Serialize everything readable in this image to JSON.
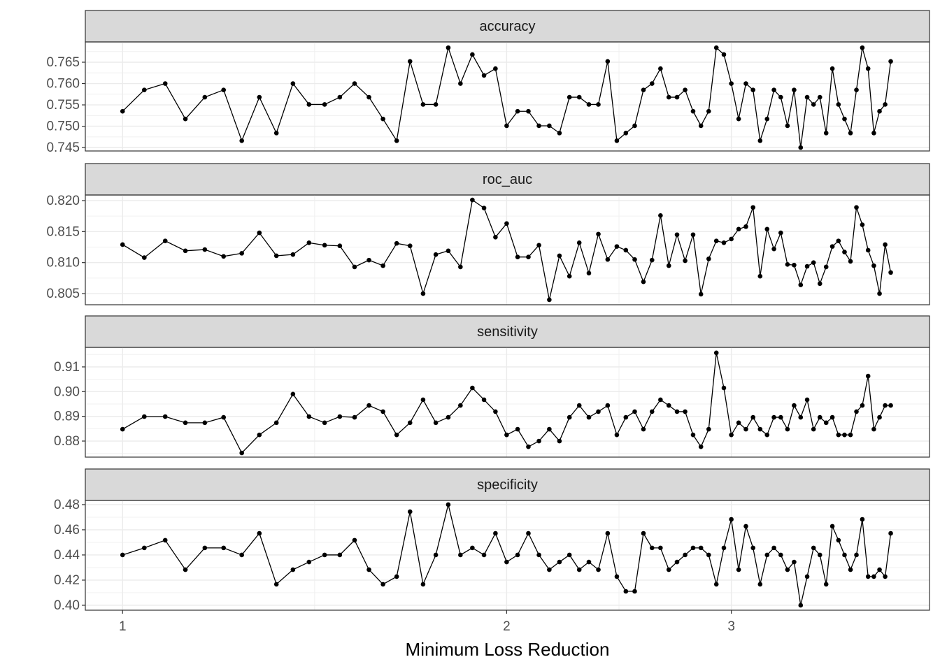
{
  "chart_data": [
    {
      "type": "line",
      "title": "accuracy",
      "log_x": true,
      "grid": true,
      "color": "#000000",
      "xlim": [
        0.935,
        4.29
      ],
      "xticks": [
        1,
        2,
        3
      ],
      "ylim": [
        0.7442,
        0.76975
      ],
      "yticks": [
        0.745,
        {
          "value": 0.75,
          "label": "0.750"
        },
        0.755,
        {
          "value": 0.76,
          "label": "0.760"
        },
        0.765
      ],
      "x": [
        1,
        1.04,
        1.08,
        1.12,
        1.16,
        1.2,
        1.24,
        1.28,
        1.32,
        1.36,
        1.4,
        1.44,
        1.48,
        1.52,
        1.56,
        1.6,
        1.64,
        1.68,
        1.72,
        1.76,
        1.8,
        1.84,
        1.88,
        1.92,
        1.96,
        2,
        2.04,
        2.08,
        2.12,
        2.16,
        2.2,
        2.24,
        2.28,
        2.32,
        2.36,
        2.4,
        2.44,
        2.48,
        2.52,
        2.56,
        2.6,
        2.64,
        2.68,
        2.72,
        2.76,
        2.8,
        2.84,
        2.88,
        2.92,
        2.96,
        3,
        3.04,
        3.08,
        3.12,
        3.16,
        3.2,
        3.24,
        3.28,
        3.32,
        3.36,
        3.4,
        3.44,
        3.48,
        3.52,
        3.56,
        3.6,
        3.64,
        3.68,
        3.72,
        3.76,
        3.8,
        3.84,
        3.88,
        3.92,
        3.96,
        4
      ],
      "values": [
        0.7535,
        0.7585,
        0.76,
        0.7517,
        0.7568,
        0.7585,
        0.7466,
        0.7568,
        0.7484,
        0.76,
        0.7551,
        0.7551,
        0.7568,
        0.76,
        0.7568,
        0.7517,
        0.7466,
        0.7652,
        0.7551,
        0.7551,
        0.7684,
        0.76,
        0.7668,
        0.7619,
        0.7635,
        0.7501,
        0.7535,
        0.7535,
        0.7501,
        0.7501,
        0.7484,
        0.7568,
        0.7568,
        0.7551,
        0.7551,
        0.7652,
        0.7466,
        0.7484,
        0.7501,
        0.7585,
        0.76,
        0.7635,
        0.7568,
        0.7568,
        0.7585,
        0.7535,
        0.7501,
        0.7535,
        0.7684,
        0.7668,
        0.76,
        0.7517,
        0.76,
        0.7585,
        0.7466,
        0.7517,
        0.7585,
        0.7568,
        0.7501,
        0.7585,
        0.745,
        0.7568,
        0.7551,
        0.7568,
        0.7484,
        0.7635,
        0.7551,
        0.7517,
        0.7484,
        0.7585,
        0.7684,
        0.7635,
        0.7484,
        0.7535,
        0.7551,
        0.7652
      ]
    },
    {
      "type": "line",
      "title": "roc_auc",
      "log_x": true,
      "grid": true,
      "color": "#000000",
      "xlim": [
        0.935,
        4.29
      ],
      "xticks": [
        1,
        2,
        3
      ],
      "ylim": [
        0.8032,
        0.8209
      ],
      "yticks": [
        0.805,
        {
          "value": 0.81,
          "label": "0.810"
        },
        0.815,
        {
          "value": 0.82,
          "label": "0.820"
        }
      ],
      "x": [
        1,
        1.04,
        1.08,
        1.12,
        1.16,
        1.2,
        1.24,
        1.28,
        1.32,
        1.36,
        1.4,
        1.44,
        1.48,
        1.52,
        1.56,
        1.6,
        1.64,
        1.68,
        1.72,
        1.76,
        1.8,
        1.84,
        1.88,
        1.92,
        1.96,
        2,
        2.04,
        2.08,
        2.12,
        2.16,
        2.2,
        2.24,
        2.28,
        2.32,
        2.36,
        2.4,
        2.44,
        2.48,
        2.52,
        2.56,
        2.6,
        2.64,
        2.68,
        2.72,
        2.76,
        2.8,
        2.84,
        2.88,
        2.92,
        2.96,
        3,
        3.04,
        3.08,
        3.12,
        3.16,
        3.2,
        3.24,
        3.28,
        3.32,
        3.36,
        3.4,
        3.44,
        3.48,
        3.52,
        3.56,
        3.6,
        3.64,
        3.68,
        3.72,
        3.76,
        3.8,
        3.84,
        3.88,
        3.92,
        3.96,
        4
      ],
      "values": [
        0.8129,
        0.8108,
        0.8135,
        0.8119,
        0.8121,
        0.811,
        0.8115,
        0.8148,
        0.8111,
        0.8113,
        0.8132,
        0.8128,
        0.8127,
        0.8093,
        0.8104,
        0.8095,
        0.8131,
        0.8127,
        0.805,
        0.8113,
        0.8119,
        0.8093,
        0.8201,
        0.8188,
        0.8141,
        0.8163,
        0.8109,
        0.8109,
        0.8128,
        0.804,
        0.8111,
        0.8078,
        0.8132,
        0.8083,
        0.8146,
        0.8105,
        0.8126,
        0.812,
        0.8105,
        0.8069,
        0.8104,
        0.8176,
        0.8095,
        0.8145,
        0.8103,
        0.8145,
        0.8049,
        0.8106,
        0.8135,
        0.8132,
        0.8138,
        0.8154,
        0.8158,
        0.8189,
        0.8078,
        0.8154,
        0.8122,
        0.8148,
        0.8097,
        0.8096,
        0.8064,
        0.8094,
        0.81,
        0.8066,
        0.8093,
        0.8126,
        0.8135,
        0.8117,
        0.8102,
        0.8189,
        0.8161,
        0.812,
        0.8095,
        0.805,
        0.8129,
        0.8084
      ]
    },
    {
      "type": "line",
      "title": "sensitivity",
      "log_x": true,
      "grid": true,
      "color": "#000000",
      "xlim": [
        0.935,
        4.29
      ],
      "xticks": [
        1,
        2,
        3
      ],
      "ylim": [
        0.8735,
        0.9179
      ],
      "yticks": [
        0.88,
        0.89,
        {
          "value": 0.9,
          "label": "0.90"
        },
        0.91
      ],
      "x": [
        1,
        1.04,
        1.08,
        1.12,
        1.16,
        1.2,
        1.24,
        1.28,
        1.32,
        1.36,
        1.4,
        1.44,
        1.48,
        1.52,
        1.56,
        1.6,
        1.64,
        1.68,
        1.72,
        1.76,
        1.8,
        1.84,
        1.88,
        1.92,
        1.96,
        2,
        2.04,
        2.08,
        2.12,
        2.16,
        2.2,
        2.24,
        2.28,
        2.32,
        2.36,
        2.4,
        2.44,
        2.48,
        2.52,
        2.56,
        2.6,
        2.64,
        2.68,
        2.72,
        2.76,
        2.8,
        2.84,
        2.88,
        2.92,
        2.96,
        3,
        3.04,
        3.08,
        3.12,
        3.16,
        3.2,
        3.24,
        3.28,
        3.32,
        3.36,
        3.4,
        3.44,
        3.48,
        3.52,
        3.56,
        3.6,
        3.64,
        3.68,
        3.72,
        3.76,
        3.8,
        3.84,
        3.88,
        3.92,
        3.96,
        4
      ],
      "values": [
        0.8848,
        0.8899,
        0.8899,
        0.8874,
        0.8874,
        0.8896,
        0.8752,
        0.8825,
        0.8874,
        0.899,
        0.8899,
        0.8874,
        0.8899,
        0.8896,
        0.8944,
        0.8919,
        0.8825,
        0.8874,
        0.8967,
        0.8874,
        0.8896,
        0.8944,
        0.9015,
        0.8967,
        0.8919,
        0.8825,
        0.8848,
        0.8777,
        0.88,
        0.8848,
        0.88,
        0.8896,
        0.8944,
        0.8896,
        0.8919,
        0.8944,
        0.8825,
        0.8896,
        0.8919,
        0.8848,
        0.8919,
        0.8967,
        0.8944,
        0.8919,
        0.8919,
        0.8825,
        0.8777,
        0.8848,
        0.9157,
        0.9015,
        0.8825,
        0.8874,
        0.8848,
        0.8896,
        0.8848,
        0.8825,
        0.8896,
        0.8896,
        0.8848,
        0.8944,
        0.8896,
        0.8967,
        0.8848,
        0.8896,
        0.8874,
        0.8896,
        0.8825,
        0.8825,
        0.8825,
        0.8919,
        0.8944,
        0.9063,
        0.8848,
        0.8896,
        0.8944,
        0.8944
      ]
    },
    {
      "type": "line",
      "title": "specificity",
      "log_x": true,
      "grid": true,
      "color": "#000000",
      "xlim": [
        0.935,
        4.29
      ],
      "xticks": [
        1,
        2,
        3
      ],
      "xlabel": "Minimum Loss Reduction",
      "ylim": [
        0.3961,
        0.4833
      ],
      "yticks": [
        {
          "value": 0.4,
          "label": "0.40"
        },
        0.42,
        0.44,
        0.46,
        0.48
      ],
      "x": [
        1,
        1.04,
        1.08,
        1.12,
        1.16,
        1.2,
        1.24,
        1.28,
        1.32,
        1.36,
        1.4,
        1.44,
        1.48,
        1.52,
        1.56,
        1.6,
        1.64,
        1.68,
        1.72,
        1.76,
        1.8,
        1.84,
        1.88,
        1.92,
        1.96,
        2,
        2.04,
        2.08,
        2.12,
        2.16,
        2.2,
        2.24,
        2.28,
        2.32,
        2.36,
        2.4,
        2.44,
        2.48,
        2.52,
        2.56,
        2.6,
        2.64,
        2.68,
        2.72,
        2.76,
        2.8,
        2.84,
        2.88,
        2.92,
        2.96,
        3,
        3.04,
        3.08,
        3.12,
        3.16,
        3.2,
        3.24,
        3.28,
        3.32,
        3.36,
        3.4,
        3.44,
        3.48,
        3.52,
        3.56,
        3.6,
        3.64,
        3.68,
        3.72,
        3.76,
        3.8,
        3.84,
        3.88,
        3.92,
        3.96,
        4
      ],
      "values": [
        0.44,
        0.4456,
        0.4517,
        0.4283,
        0.4456,
        0.4456,
        0.44,
        0.4572,
        0.4167,
        0.4283,
        0.4344,
        0.44,
        0.44,
        0.4517,
        0.4283,
        0.4167,
        0.4228,
        0.4744,
        0.4167,
        0.44,
        0.48,
        0.44,
        0.4456,
        0.44,
        0.4572,
        0.4344,
        0.44,
        0.4572,
        0.44,
        0.4283,
        0.4344,
        0.44,
        0.4283,
        0.4344,
        0.4283,
        0.4572,
        0.4228,
        0.4111,
        0.4111,
        0.4572,
        0.4456,
        0.4456,
        0.4283,
        0.4344,
        0.44,
        0.4456,
        0.4456,
        0.44,
        0.4167,
        0.4456,
        0.4683,
        0.4283,
        0.4628,
        0.4456,
        0.4167,
        0.44,
        0.4456,
        0.44,
        0.4283,
        0.4344,
        0.4,
        0.4228,
        0.4456,
        0.44,
        0.4167,
        0.4628,
        0.4517,
        0.44,
        0.4283,
        0.44,
        0.4683,
        0.4228,
        0.4228,
        0.4283,
        0.4228,
        0.4572
      ]
    }
  ]
}
